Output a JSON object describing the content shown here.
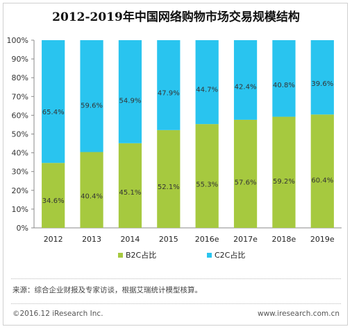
{
  "source_note": "来源：综合企业财报及专家访谈，根据艾瑞统计模型核算。",
  "footer": "©2016.12 iResearch Inc.",
  "site": "www.iresearch.com.cn",
  "colors": {
    "b2c": "#a6c93f",
    "c2c": "#29c4ef"
  },
  "chart_data": {
    "type": "bar",
    "stacked": true,
    "title": "2012-2019年中国网络购物市场交易规模结构",
    "categories": [
      "2012",
      "2013",
      "2014",
      "2015",
      "2016e",
      "2017e",
      "2018e",
      "2019e"
    ],
    "series": [
      {
        "name": "B2C占比",
        "values": [
          34.6,
          40.4,
          45.1,
          52.1,
          55.3,
          57.6,
          59.2,
          60.4
        ]
      },
      {
        "name": "C2C占比",
        "values": [
          65.4,
          59.6,
          54.9,
          47.9,
          44.7,
          42.4,
          40.8,
          39.6
        ]
      }
    ],
    "value_labels": {
      "b2c": [
        "34.6%",
        "40.4%",
        "45.1%",
        "52.1%",
        "55.3%",
        "57.6%",
        "59.2%",
        "60.4%"
      ],
      "c2c": [
        "65.4%",
        "59.6%",
        "54.9%",
        "47.9%",
        "44.7%",
        "42.4%",
        "40.8%",
        "39.6%"
      ]
    },
    "yticks": [
      "0%",
      "10%",
      "20%",
      "30%",
      "40%",
      "50%",
      "60%",
      "70%",
      "80%",
      "90%",
      "100%"
    ],
    "ylim": [
      0,
      100
    ],
    "grid": false,
    "legend": "bottom"
  }
}
